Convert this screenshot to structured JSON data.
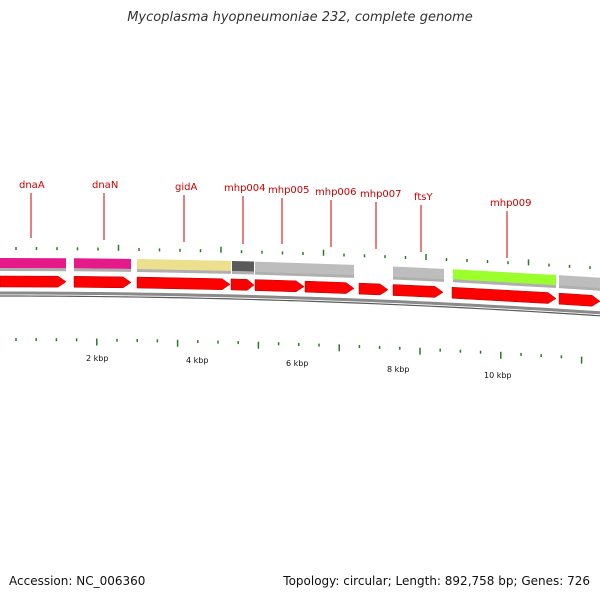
{
  "header": {
    "title": "Mycoplasma hyopneumoniae 232, complete genome"
  },
  "footer": {
    "accession": "Accession: NC_006360",
    "stats": "Topology: circular; Length: 892,758 bp; Genes: 726"
  },
  "colors": {
    "label": "#cc0000",
    "arrow": "#ff0000",
    "tick": "#2a7a2a",
    "backbone": "#8a8a8a"
  },
  "genes": [
    {
      "name": "dnaA"
    },
    {
      "name": "dnaN"
    },
    {
      "name": "gidA"
    },
    {
      "name": "mhp004"
    },
    {
      "name": "mhp005"
    },
    {
      "name": "mhp006"
    },
    {
      "name": "mhp007"
    },
    {
      "name": "ftsY"
    },
    {
      "name": "mhp009"
    }
  ],
  "category_colors": [
    "#e6198a",
    "#e6198a",
    "#ece08e",
    "#5a5a5a",
    "#bdbdbd",
    "#bdbdbd",
    "#9aff2a",
    "#bdbdbd",
    "#ff8c00"
  ],
  "scale_labels": [
    "2 kbp",
    "4 kbp",
    "6 kbp",
    "8 kbp",
    "10 kbp"
  ]
}
